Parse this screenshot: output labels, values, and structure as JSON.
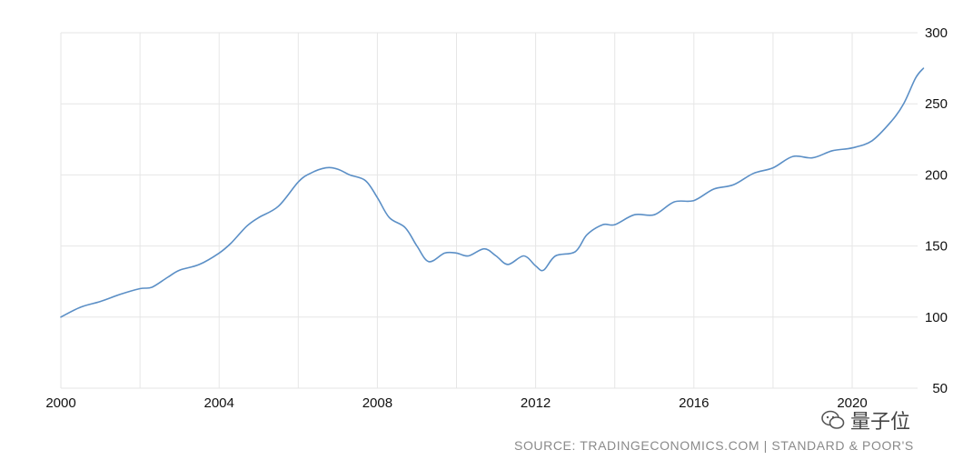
{
  "chart_data": {
    "type": "line",
    "title": "",
    "xlabel": "",
    "ylabel": "",
    "xlim": [
      2000,
      2021.8
    ],
    "ylim": [
      50,
      300
    ],
    "x_ticks": [
      "2000",
      "2004",
      "2008",
      "2012",
      "2016",
      "2020"
    ],
    "y_ticks": [
      "300",
      "250",
      "200",
      "150",
      "100",
      "50"
    ],
    "grid": true,
    "series_color": "#5b8fc6",
    "series": [
      {
        "values": [
          [
            2000.0,
            100
          ],
          [
            2000.5,
            107
          ],
          [
            2001.0,
            111
          ],
          [
            2001.5,
            116
          ],
          [
            2002.0,
            120
          ],
          [
            2002.3,
            121
          ],
          [
            2002.7,
            128
          ],
          [
            2003.0,
            133
          ],
          [
            2003.5,
            137
          ],
          [
            2004.0,
            145
          ],
          [
            2004.3,
            152
          ],
          [
            2004.7,
            164
          ],
          [
            2005.0,
            170
          ],
          [
            2005.5,
            178
          ],
          [
            2006.0,
            195
          ],
          [
            2006.3,
            201
          ],
          [
            2006.7,
            205
          ],
          [
            2007.0,
            204
          ],
          [
            2007.3,
            200
          ],
          [
            2007.7,
            196
          ],
          [
            2008.0,
            184
          ],
          [
            2008.3,
            170
          ],
          [
            2008.7,
            163
          ],
          [
            2009.0,
            150
          ],
          [
            2009.3,
            139
          ],
          [
            2009.7,
            145
          ],
          [
            2010.0,
            145
          ],
          [
            2010.3,
            143
          ],
          [
            2010.7,
            148
          ],
          [
            2011.0,
            143
          ],
          [
            2011.3,
            137
          ],
          [
            2011.7,
            143
          ],
          [
            2012.0,
            136
          ],
          [
            2012.2,
            133
          ],
          [
            2012.5,
            143
          ],
          [
            2013.0,
            146
          ],
          [
            2013.3,
            158
          ],
          [
            2013.7,
            165
          ],
          [
            2014.0,
            165
          ],
          [
            2014.5,
            172
          ],
          [
            2015.0,
            172
          ],
          [
            2015.5,
            181
          ],
          [
            2016.0,
            182
          ],
          [
            2016.5,
            190
          ],
          [
            2017.0,
            193
          ],
          [
            2017.5,
            201
          ],
          [
            2018.0,
            205
          ],
          [
            2018.5,
            213
          ],
          [
            2019.0,
            212
          ],
          [
            2019.5,
            217
          ],
          [
            2020.0,
            219
          ],
          [
            2020.5,
            224
          ],
          [
            2021.0,
            238
          ],
          [
            2021.3,
            250
          ],
          [
            2021.6,
            268
          ],
          [
            2021.8,
            275
          ]
        ]
      }
    ]
  },
  "footer": {
    "source": "SOURCE: TRADINGECONOMICS.COM | STANDARD & POOR'S",
    "watermark": "量子位",
    "watermark_icon": "wechat-icon"
  }
}
